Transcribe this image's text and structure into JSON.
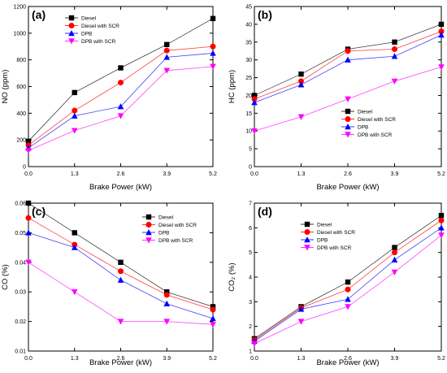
{
  "series_style": [
    {
      "color": "#000000",
      "marker": "square"
    },
    {
      "color": "#ff0000",
      "marker": "circle"
    },
    {
      "color": "#0000ff",
      "marker": "triangle-up"
    },
    {
      "color": "#ff00ff",
      "marker": "triangle-down"
    }
  ],
  "chart_data": [
    {
      "type": "line",
      "panel_label": "(a)",
      "xlabel": "Brake Power (kW)",
      "ylabel": "NO (ppm)",
      "x": [
        0.0,
        1.3,
        2.6,
        3.9,
        5.2
      ],
      "x_tick_labels": [
        "0.0",
        "1.3",
        "2.6",
        "3.9",
        "5.2"
      ],
      "ylim": [
        0,
        1200
      ],
      "y_ticks": [
        0,
        200,
        400,
        600,
        800,
        1000,
        1200
      ],
      "grid": false,
      "legend_position": "top-left",
      "series": [
        {
          "name": "Diesel",
          "values": [
            190,
            555,
            740,
            915,
            1110
          ]
        },
        {
          "name": "Diesel with SCR",
          "values": [
            160,
            420,
            630,
            870,
            900
          ]
        },
        {
          "name": "DPB",
          "values": [
            140,
            380,
            450,
            820,
            850
          ]
        },
        {
          "name": "DPB with SCR",
          "values": [
            120,
            270,
            380,
            720,
            750
          ]
        }
      ]
    },
    {
      "type": "line",
      "panel_label": "(b)",
      "xlabel": "Brake Power (kW)",
      "ylabel": "HC (ppm)",
      "x": [
        0.0,
        1.3,
        2.6,
        3.9,
        5.2
      ],
      "x_tick_labels": [
        "0.0",
        "1.3",
        "2.6",
        "3.9",
        "5.2"
      ],
      "ylim": [
        0,
        45
      ],
      "y_ticks": [
        0,
        5,
        10,
        15,
        20,
        25,
        30,
        35,
        40,
        45
      ],
      "grid": false,
      "legend_position": "bottom-right",
      "series": [
        {
          "name": "Diesel",
          "values": [
            20,
            26,
            33,
            35,
            40
          ]
        },
        {
          "name": "Diesel with SCR",
          "values": [
            19,
            24,
            32.5,
            33,
            38
          ]
        },
        {
          "name": "DPB",
          "values": [
            18,
            23,
            30,
            31,
            37
          ]
        },
        {
          "name": "DPB with SCR",
          "values": [
            10,
            14,
            19,
            24,
            28
          ]
        }
      ]
    },
    {
      "type": "line",
      "panel_label": "(c)",
      "xlabel": "Brake Power (kW)",
      "ylabel": "CO (%)",
      "x": [
        0.0,
        1.3,
        2.6,
        3.9,
        5.2
      ],
      "x_tick_labels": [
        "0.0",
        "1.3",
        "2.6",
        "3.9",
        "5.2"
      ],
      "ylim": [
        0.01,
        0.06
      ],
      "y_ticks": [
        0.01,
        0.02,
        0.03,
        0.04,
        0.05,
        0.06
      ],
      "y_tick_labels": [
        "0.01",
        "0.02",
        "0.03",
        "0.04",
        "0.05",
        "0.06"
      ],
      "grid": false,
      "legend_position": "top-right",
      "series": [
        {
          "name": "Diesel",
          "values": [
            0.06,
            0.05,
            0.04,
            0.03,
            0.025
          ]
        },
        {
          "name": "Diesel with SCR",
          "values": [
            0.055,
            0.046,
            0.037,
            0.029,
            0.024
          ]
        },
        {
          "name": "DPB",
          "values": [
            0.05,
            0.045,
            0.034,
            0.026,
            0.021
          ]
        },
        {
          "name": "DPB with SCR",
          "values": [
            0.04,
            0.03,
            0.02,
            0.02,
            0.019
          ]
        }
      ]
    },
    {
      "type": "line",
      "panel_label": "(d)",
      "xlabel": "Brake Power (kW)",
      "ylabel": "CO₂ (%)",
      "x": [
        0.0,
        1.3,
        2.6,
        3.9,
        5.2
      ],
      "x_tick_labels": [
        "0.0",
        "1.3",
        "2.6",
        "3.9",
        "5.2"
      ],
      "ylim": [
        1,
        7
      ],
      "y_ticks": [
        1,
        2,
        3,
        4,
        5,
        6,
        7
      ],
      "grid": false,
      "legend_position": "top-left",
      "series": [
        {
          "name": "Diesel",
          "values": [
            1.5,
            2.8,
            3.8,
            5.2,
            6.5
          ]
        },
        {
          "name": "Diesel with SCR",
          "values": [
            1.45,
            2.75,
            3.5,
            5.0,
            6.3
          ]
        },
        {
          "name": "DPB",
          "values": [
            1.4,
            2.7,
            3.1,
            4.7,
            6.0
          ]
        },
        {
          "name": "DPB with SCR",
          "values": [
            1.3,
            2.2,
            2.8,
            4.2,
            5.7
          ]
        }
      ]
    }
  ]
}
